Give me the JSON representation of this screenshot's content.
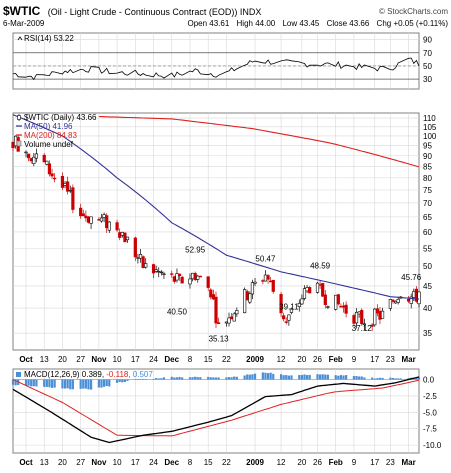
{
  "header": {
    "symbol": "$WTIC",
    "title": "(Oil - Light Crude - Continuous Contract (EOD)) INDX",
    "site": "© StockCharts.com",
    "date": "6-Mar-2009",
    "quote": {
      "open": "Open 43.61",
      "high": "High 44.00",
      "low": "Low 43.45",
      "close": "Close 43.66",
      "chg": "Chg +0.05 (+0.11%)"
    }
  },
  "colors": {
    "background": "#ffffff",
    "panel_border": "#808080",
    "grid": "#d8d8d8",
    "up_candle": "#000000",
    "down_candle": "#cc0000",
    "ma50": "#333399",
    "ma200": "#dd2222",
    "macd_line": "#000000",
    "signal_line": "#dd2222",
    "histogram": "#4a8fd6",
    "rsi_line": "#000000"
  },
  "chart_data": [
    {
      "type": "line",
      "panel": "rsi",
      "legend_label": "RSI(14) 53.22",
      "y_ticks": [
        30,
        50,
        70,
        90
      ],
      "ylim": [
        15,
        100
      ],
      "reference_lines": [
        30,
        50,
        70
      ],
      "x": [
        "2008-10-02",
        "2008-10-10",
        "2008-10-20",
        "2008-10-30",
        "2008-11-10",
        "2008-11-20",
        "2008-12-01",
        "2008-12-10",
        "2008-12-20",
        "2009-01-02",
        "2009-01-12",
        "2009-01-22",
        "2009-02-02",
        "2009-02-12",
        "2009-02-22",
        "2009-03-02",
        "2009-03-06"
      ],
      "values": [
        38,
        33,
        42,
        45,
        40,
        38,
        35,
        43,
        36,
        58,
        55,
        53,
        52,
        48,
        45,
        60,
        53.22
      ]
    },
    {
      "type": "candlestick",
      "panel": "price",
      "legend": [
        {
          "label": "$WTIC (Daily) 43.66",
          "icon": "candle-icon"
        },
        {
          "label": "MA(50) 41.96",
          "color": "#333399"
        },
        {
          "label": "MA(200) 84.83",
          "color": "#dd2222"
        },
        {
          "label": "Volume undef",
          "icon": "volume-box-icon"
        }
      ],
      "y_ticks": [
        35,
        40,
        45,
        50,
        55,
        60,
        65,
        70,
        75,
        80,
        85,
        90,
        95,
        100,
        105,
        110
      ],
      "ylim": [
        32,
        113
      ],
      "scale": "log",
      "anchors": [
        {
          "date": "2008-10-01",
          "price": 98
        },
        {
          "date": "2008-10-13",
          "price": 86
        },
        {
          "date": "2008-10-27",
          "price": 66
        },
        {
          "date": "2008-11-10",
          "price": 62
        },
        {
          "date": "2008-11-20",
          "price": 50
        },
        {
          "date": "2008-12-04",
          "price": 46
        },
        {
          "date": "2008-12-10",
          "price": 48
        },
        {
          "date": "2008-12-16",
          "price": 44
        },
        {
          "date": "2008-12-19",
          "price": 36
        },
        {
          "date": "2008-12-24",
          "price": 39
        },
        {
          "date": "2009-01-06",
          "price": 48
        },
        {
          "date": "2009-01-14",
          "price": 37
        },
        {
          "date": "2009-01-23",
          "price": 45
        },
        {
          "date": "2009-02-02",
          "price": 41
        },
        {
          "date": "2009-02-12",
          "price": 37.5
        },
        {
          "date": "2009-02-20",
          "price": 38.5
        },
        {
          "date": "2009-02-27",
          "price": 44
        },
        {
          "date": "2009-03-04",
          "price": 42
        },
        {
          "date": "2009-03-06",
          "price": 43.66
        }
      ],
      "ma50": [
        {
          "date": "2008-10-01",
          "value": 112
        },
        {
          "date": "2008-10-20",
          "value": 100
        },
        {
          "date": "2008-11-10",
          "value": 80
        },
        {
          "date": "2008-12-01",
          "value": 63
        },
        {
          "date": "2008-12-22",
          "value": 53
        },
        {
          "date": "2009-01-12",
          "value": 48.5
        },
        {
          "date": "2009-02-02",
          "value": 45.5
        },
        {
          "date": "2009-02-23",
          "value": 42.5
        },
        {
          "date": "2009-03-06",
          "value": 41.96
        }
      ],
      "ma200": [
        {
          "date": "2008-11-01",
          "value": 111
        },
        {
          "date": "2008-12-01",
          "value": 109.5
        },
        {
          "date": "2009-01-01",
          "value": 104
        },
        {
          "date": "2009-02-01",
          "value": 96
        },
        {
          "date": "2009-03-06",
          "value": 84.83
        }
      ],
      "annotations": [
        {
          "label": "52.95",
          "date": "2008-12-10",
          "value": 52.95
        },
        {
          "label": "50.47",
          "date": "2009-01-06",
          "value": 50.47
        },
        {
          "label": "48.59",
          "date": "2009-01-27",
          "value": 48.59
        },
        {
          "label": "45.76",
          "date": "2009-03-03",
          "value": 45.76
        },
        {
          "label": "40.50",
          "date": "2008-12-03",
          "value": 40.5
        },
        {
          "label": "35.13",
          "date": "2008-12-19",
          "value": 35.13
        },
        {
          "label": "39.11",
          "date": "2009-01-15",
          "value": 39.11
        },
        {
          "label": "37.12",
          "date": "2009-02-12",
          "value": 37.12
        }
      ]
    },
    {
      "type": "line",
      "panel": "macd",
      "legend_label": "MACD(12,26,9) 0.389, -0.118, 0.507",
      "y_ticks": [
        0.0,
        -2.5,
        -5.0,
        -7.5,
        -10.0
      ],
      "ylim": [
        -11.2,
        1.6
      ],
      "macd": [
        {
          "date": "2008-10-01",
          "value": -1.5
        },
        {
          "date": "2008-10-15",
          "value": -4.8
        },
        {
          "date": "2008-10-31",
          "value": -8.8
        },
        {
          "date": "2008-11-07",
          "value": -9.6
        },
        {
          "date": "2008-11-20",
          "value": -8.5
        },
        {
          "date": "2008-12-01",
          "value": -7.9
        },
        {
          "date": "2008-12-15",
          "value": -6.5
        },
        {
          "date": "2008-12-24",
          "value": -5.5
        },
        {
          "date": "2009-01-06",
          "value": -2.6
        },
        {
          "date": "2009-01-16",
          "value": -2.3
        },
        {
          "date": "2009-01-26",
          "value": -1.0
        },
        {
          "date": "2009-02-05",
          "value": -0.6
        },
        {
          "date": "2009-02-17",
          "value": -1.0
        },
        {
          "date": "2009-02-25",
          "value": -0.5
        },
        {
          "date": "2009-03-06",
          "value": 0.389
        }
      ],
      "signal": [
        {
          "date": "2008-10-01",
          "value": 0.0
        },
        {
          "date": "2008-10-20",
          "value": -3.5
        },
        {
          "date": "2008-11-10",
          "value": -8.5
        },
        {
          "date": "2008-12-01",
          "value": -8.6
        },
        {
          "date": "2008-12-24",
          "value": -6.2
        },
        {
          "date": "2009-01-12",
          "value": -3.8
        },
        {
          "date": "2009-02-01",
          "value": -1.9
        },
        {
          "date": "2009-02-20",
          "value": -1.3
        },
        {
          "date": "2009-03-06",
          "value": -0.118
        }
      ],
      "histogram_last": 0.507
    }
  ],
  "x_axis": {
    "ticks": [
      {
        "date": "2008-10-06",
        "label": "Oct"
      },
      {
        "date": "2008-10-13",
        "label": "13"
      },
      {
        "date": "2008-10-20",
        "label": "20"
      },
      {
        "date": "2008-10-27",
        "label": "27"
      },
      {
        "date": "2008-11-03",
        "label": "Nov"
      },
      {
        "date": "2008-11-10",
        "label": "10"
      },
      {
        "date": "2008-11-17",
        "label": "17"
      },
      {
        "date": "2008-11-24",
        "label": "24"
      },
      {
        "date": "2008-12-01",
        "label": "Dec"
      },
      {
        "date": "2008-12-08",
        "label": "8"
      },
      {
        "date": "2008-12-15",
        "label": "15"
      },
      {
        "date": "2008-12-22",
        "label": "22"
      },
      {
        "date": "2009-01-02",
        "label": "2009"
      },
      {
        "date": "2009-01-12",
        "label": "12"
      },
      {
        "date": "2009-01-20",
        "label": "20"
      },
      {
        "date": "2009-01-26",
        "label": "26"
      },
      {
        "date": "2009-02-02",
        "label": "Feb"
      },
      {
        "date": "2009-02-09",
        "label": "9"
      },
      {
        "date": "2009-02-17",
        "label": "17"
      },
      {
        "date": "2009-02-23",
        "label": "23"
      },
      {
        "date": "2009-03-02",
        "label": "Mar"
      }
    ],
    "bold_labels": [
      "Oct",
      "Nov",
      "Dec",
      "2009",
      "Feb",
      "Mar"
    ]
  }
}
